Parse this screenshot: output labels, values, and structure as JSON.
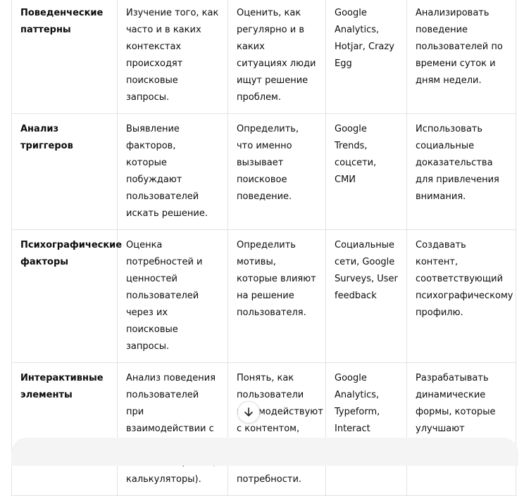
{
  "table": {
    "rows": [
      [
        "Поведенческие паттерны",
        "Изучение того, как часто и в каких контекстах происходят поисковые запросы.",
        "Оценить, как регулярно и в каких ситуациях люди ищут решение проблем.",
        "Google Analytics, Hotjar, Crazy Egg",
        "Анализировать поведение пользователей по времени суток и дням недели."
      ],
      [
        "Анализ триггеров",
        "Выявление факторов, которые побуждают пользователей искать решение.",
        "Определить, что именно вызывает поисковое поведение.",
        "Google Trends, соцсети, СМИ",
        "Использовать социальные доказательства для привлечения внимания."
      ],
      [
        "Психографические факторы",
        "Оценка потребностей и ценностей пользователей через их поисковые запросы.",
        "Определить мотивы, которые влияют на решение пользователя.",
        "Социальные сети, Google Surveys, User feedback",
        "Создавать контент, соответствующий психографическому профилю."
      ],
      [
        "Интерактивные элементы",
        "Анализ поведения пользователей при взаимодействии с интерактивным контентом (тесты, калькуляторы).",
        "Понять, как пользователи взаимодействуют с контентом, что помогает выявить потребности.",
        "Google Analytics, Typeform, Interact",
        "Разрабатывать динамические формы, которые улучшают пользовательский опыт."
      ]
    ]
  },
  "icons": {
    "scroll_down": "arrow-down-icon"
  }
}
